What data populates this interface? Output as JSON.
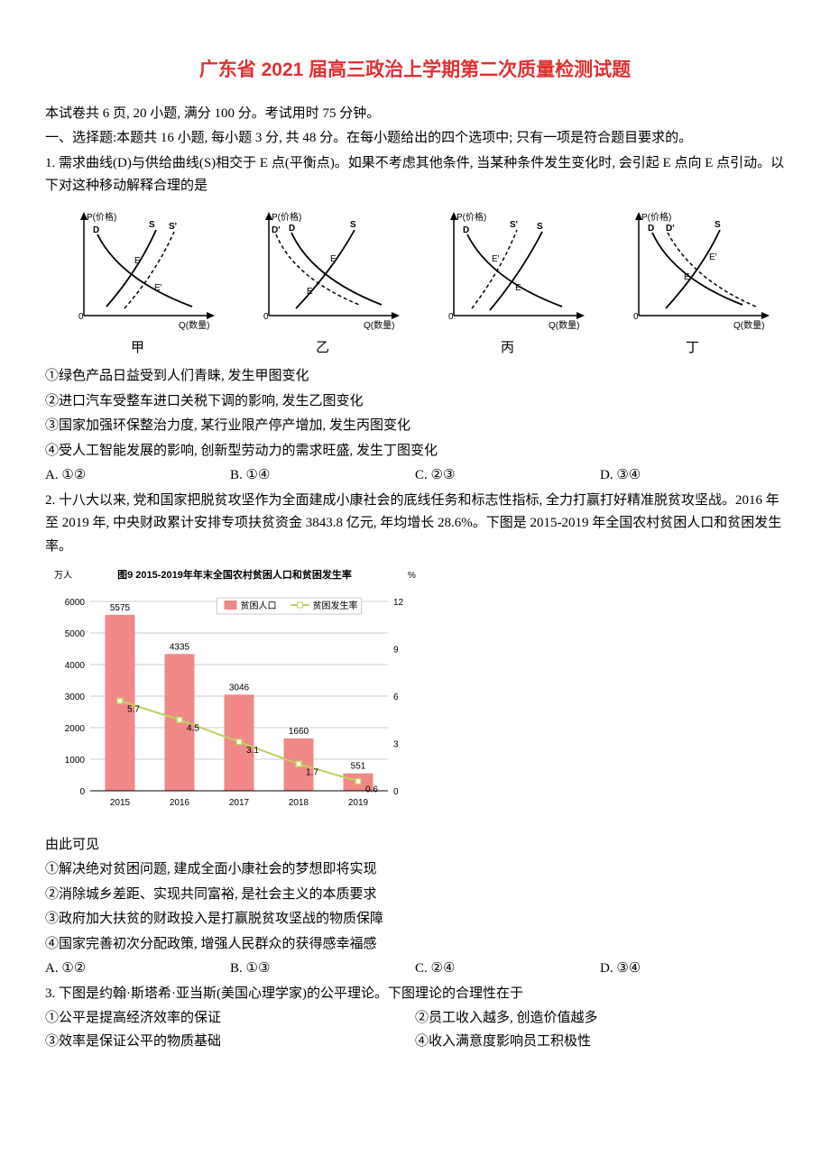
{
  "title": "广东省 2021 届高三政治上学期第二次质量检测试题",
  "intro1": "本试卷共 6 页, 20 小题, 满分 100 分。考试用时 75 分钟。",
  "intro2": "一、选择题:本题共 16 小题, 每小题 3 分, 共 48 分。在每小题给出的四个选项中; 只有一项是符合题目要求的。",
  "q1": {
    "stem": "1. 需求曲线(D)与供给曲线(S)相交于 E 点(平衡点)。如果不考虑其他条件, 当某种条件发生变化时, 会引起 E 点向 E 点引动。以下对这种移动解释合理的是",
    "axisY": "P(价格)",
    "axisX": "Q(数量)",
    "labelD": "D",
    "labelS": "S",
    "labelDprime": "D'",
    "labelSprime": "S'",
    "labelE": "E",
    "labelEprime": "E'",
    "charts": [
      {
        "label": "甲"
      },
      {
        "label": "乙"
      },
      {
        "label": "丙"
      },
      {
        "label": "丁"
      }
    ],
    "s1": "①绿色产品日益受到人们青睐, 发生甲图变化",
    "s2": "②进口汽车受整车进口关税下调的影响, 发生乙图变化",
    "s3": "③国家加强环保整治力度, 某行业限产停产增加, 发生丙图变化",
    "s4": "④受人工智能发展的影响, 创新型劳动力的需求旺盛, 发生丁图变化",
    "optA": "A. ①②",
    "optB": "B. ①④",
    "optC": "C. ②③",
    "optD": "D. ③④"
  },
  "q2": {
    "stem": "2. 十八大以来, 党和国家把脱贫攻坚作为全面建成小康社会的底线任务和标志性指标, 全力打赢打好精准脱贫攻坚战。2016 年至 2019 年, 中央财政累计安排专项扶贫资金 3843.8 亿元, 年均增长 28.6%。下图是 2015-2019 年全国农村贫困人口和贫困发生率。",
    "chart": {
      "title": "图9  2015-2019年年末全国农村贫困人口和贫困发生率",
      "leftUnit": "万人",
      "rightUnit": "%",
      "legendBar": "贫困人口",
      "legendLine": "贫困发生率",
      "barColor": "#f08888",
      "lineColor": "#c0d060",
      "gridColor": "#cccccc",
      "bgColor": "#ffffff",
      "years": [
        "2015",
        "2016",
        "2017",
        "2018",
        "2019"
      ],
      "barValues": [
        5575,
        4335,
        3046,
        1660,
        551
      ],
      "lineValues": [
        5.7,
        4.5,
        3.1,
        1.7,
        0.6
      ],
      "yLeftTicks": [
        0,
        1000,
        2000,
        3000,
        4000,
        5000,
        6000
      ],
      "yRightTicks": [
        0,
        3,
        6,
        9,
        12
      ],
      "yLeftMax": 6000,
      "yRightMax": 12
    },
    "lead": "由此可见",
    "s1": "①解决绝对贫困问题, 建成全面小康社会的梦想即将实现",
    "s2": "②消除城乡差距、实现共同富裕, 是社会主义的本质要求",
    "s3": "③政府加大扶贫的财政投入是打赢脱贫攻坚战的物质保障",
    "s4": "④国家完善初次分配政策, 增强人民群众的获得感幸福感",
    "optA": "A. ①②",
    "optB": "B. ①③",
    "optC": "C. ②④",
    "optD": "D. ③④"
  },
  "q3": {
    "stem": "3. 下图是约翰·斯塔希·亚当斯(美国心理学家)的公平理论。下图理论的合理性在于",
    "s1": "①公平是提高经济效率的保证",
    "s2": "②员工收入越多, 创造价值越多",
    "s3": "③效率是保证公平的物质基础",
    "s4": "④收入满意度影响员工积极性"
  }
}
